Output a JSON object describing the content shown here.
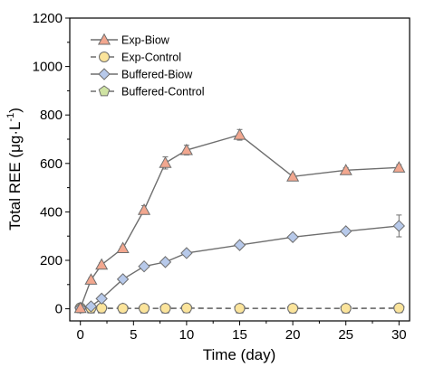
{
  "chart_data": {
    "type": "line",
    "xlabel": "Time (day)",
    "ylabel_main": "Total REE (μg·L",
    "ylabel_sup": "-1",
    "ylabel_close": ")",
    "xlim": [
      -1,
      31
    ],
    "ylim": [
      -50,
      1200
    ],
    "xticks": [
      0,
      5,
      10,
      15,
      20,
      25,
      30
    ],
    "yticks": [
      0,
      200,
      400,
      600,
      800,
      1000,
      1200
    ],
    "grid": false,
    "legend_position": "top-left",
    "series": [
      {
        "name": "Exp-Biow",
        "marker": "triangle",
        "line": "solid",
        "fill": "#f2a78f",
        "stroke": "#6e6e6e",
        "x": [
          0,
          1,
          2,
          4,
          6,
          8,
          10,
          15,
          20,
          25,
          30
        ],
        "y": [
          3,
          120,
          182,
          250,
          408,
          602,
          655,
          718,
          546,
          572,
          583
        ],
        "err": [
          0,
          8,
          8,
          8,
          18,
          25,
          20,
          22,
          10,
          10,
          12
        ]
      },
      {
        "name": "Exp-Control",
        "marker": "circle",
        "line": "dashed",
        "fill": "#fbe49b",
        "stroke": "#6e6e6e",
        "x": [
          0,
          1,
          2,
          4,
          6,
          8,
          10,
          15,
          20,
          25,
          30
        ],
        "y": [
          4,
          3,
          3,
          2,
          2,
          2,
          3,
          2,
          2,
          2,
          3
        ],
        "err": [
          0,
          0,
          0,
          0,
          0,
          0,
          0,
          0,
          0,
          0,
          0
        ]
      },
      {
        "name": "Buffered-Biow",
        "marker": "diamond",
        "line": "solid",
        "fill": "#b7c9ea",
        "stroke": "#6e6e6e",
        "x": [
          0,
          1,
          2,
          4,
          6,
          8,
          10,
          15,
          20,
          25,
          30
        ],
        "y": [
          3,
          10,
          42,
          122,
          175,
          193,
          230,
          263,
          296,
          320,
          342
        ],
        "err": [
          0,
          2,
          5,
          6,
          6,
          8,
          8,
          8,
          8,
          8,
          45
        ]
      },
      {
        "name": "Buffered-Control",
        "marker": "pentagon",
        "line": "dashed",
        "fill": "#cfe3a3",
        "stroke": "#6e6e6e",
        "x": [
          0,
          1,
          2,
          4,
          6,
          8,
          10,
          15,
          20,
          25,
          30
        ],
        "y": [
          2,
          1,
          1,
          1,
          1,
          1,
          2,
          1,
          1,
          1,
          2
        ],
        "err": [
          0,
          0,
          0,
          0,
          0,
          0,
          0,
          0,
          0,
          0,
          0
        ]
      }
    ]
  }
}
